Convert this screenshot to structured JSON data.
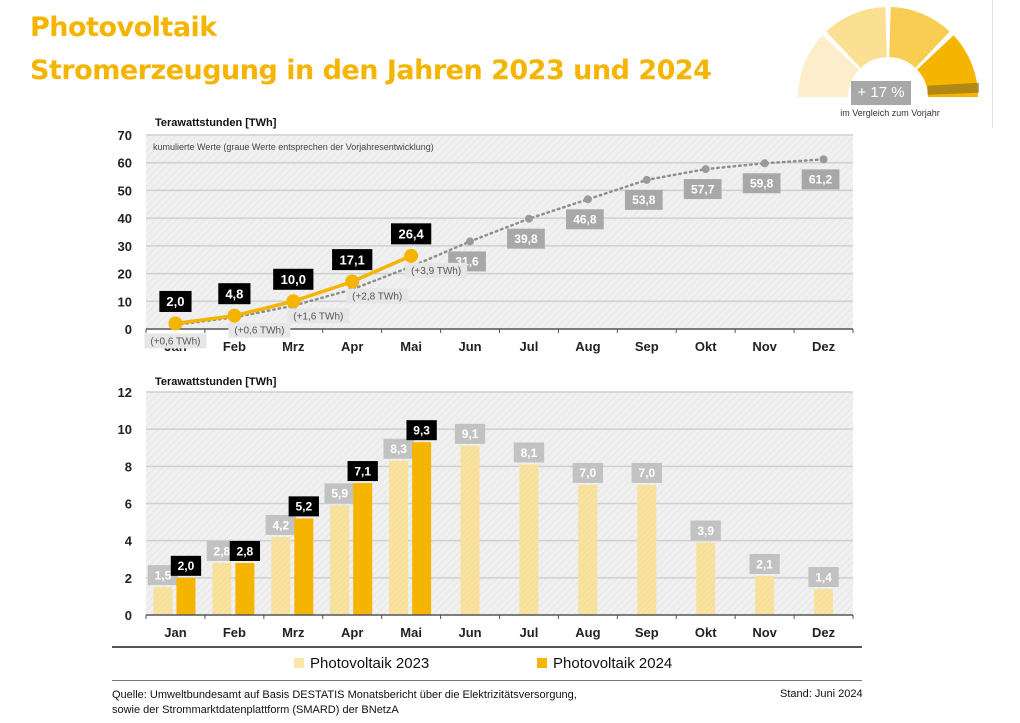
{
  "header": {
    "title_line1": "Photovoltaik",
    "title_line2": "Stromerzeugung in den Jahren 2023 und 2024"
  },
  "gauge": {
    "value_label": "+ 17 %",
    "caption": "im Vergleich zum Vorjahr",
    "change_percent": 17,
    "segment_colors": [
      "#fdeecb",
      "#fbdf93",
      "#f9cd52",
      "#f5b400"
    ],
    "needle_color": "#9a7a1a"
  },
  "colors": {
    "pv2023": "#f8e2a0",
    "pv2024": "#f5b400",
    "prev_year_gray": "#a8a8a8",
    "label_black": "#000000",
    "plot_bg": "#f0f0f0",
    "title": "#f5b400"
  },
  "chart_data": [
    {
      "type": "line",
      "title": "",
      "ylabel": "Terawattstunden [TWh]",
      "subtitle": "kumulierte Werte (graue Werte entsprechen der Vorjahresentwicklung)",
      "categories": [
        "Jan",
        "Feb",
        "Mrz",
        "Apr",
        "Mai",
        "Jun",
        "Jul",
        "Aug",
        "Sep",
        "Okt",
        "Nov",
        "Dez"
      ],
      "yticks": [
        0,
        10,
        20,
        30,
        40,
        50,
        60,
        70
      ],
      "ylim": [
        0,
        70
      ],
      "grid": true,
      "series": [
        {
          "name": "Photovoltaik 2024 (kumuliert)",
          "values": [
            2.0,
            4.8,
            10.0,
            17.1,
            26.4,
            null,
            null,
            null,
            null,
            null,
            null,
            null
          ],
          "labels": [
            "2,0",
            "4,8",
            "10,0",
            "17,1",
            "26,4"
          ],
          "differences": [
            "(+0,6 TWh)",
            "(+0,6 TWh)",
            "(+1,6 TWh)",
            "(+2,8 TWh)",
            "(+3,9 TWh)"
          ]
        },
        {
          "name": "Photovoltaik 2023 (kumuliert)",
          "values": [
            1.5,
            4.2,
            8.4,
            14.3,
            22.5,
            31.6,
            39.8,
            46.8,
            53.8,
            57.7,
            59.8,
            61.2
          ],
          "labels": [
            null,
            null,
            null,
            null,
            null,
            "31,6",
            "39,8",
            "46,8",
            "53,8",
            "57,7",
            "59,8",
            "61,2"
          ]
        }
      ]
    },
    {
      "type": "bar",
      "title": "",
      "ylabel": "Terawattstunden [TWh]",
      "categories": [
        "Jan",
        "Feb",
        "Mrz",
        "Apr",
        "Mai",
        "Jun",
        "Jul",
        "Aug",
        "Sep",
        "Okt",
        "Nov",
        "Dez"
      ],
      "yticks": [
        0,
        2,
        4,
        6,
        8,
        10,
        12
      ],
      "ylim": [
        0,
        12
      ],
      "grid": true,
      "legend_position": "bottom",
      "series": [
        {
          "name": "Photovoltaik 2023",
          "values": [
            1.5,
            2.8,
            4.2,
            5.9,
            8.3,
            9.1,
            8.1,
            7.0,
            7.0,
            3.9,
            2.1,
            1.4
          ],
          "labels": [
            "1,5",
            "2,8",
            "4,2",
            "5,9",
            "8,3",
            "9,1",
            "8,1",
            "7,0",
            "7,0",
            "3,9",
            "2,1",
            "1,4"
          ]
        },
        {
          "name": "Photovoltaik 2024",
          "values": [
            2.0,
            2.8,
            5.2,
            7.1,
            9.3,
            null,
            null,
            null,
            null,
            null,
            null,
            null
          ],
          "labels": [
            "2,0",
            "2,8",
            "5,2",
            "7,1",
            "9,3"
          ]
        }
      ]
    }
  ],
  "legend": {
    "item1": "Photovoltaik 2023",
    "item2": "Photovoltaik 2024"
  },
  "footer": {
    "source_line1": "Quelle: Umweltbundesamt auf Basis DESTATIS Monatsbericht über die Elektrizitätsversorgung,",
    "source_line2": "sowie der Strommarktdatenplattform (SMARD) der BNetzA",
    "stand": "Stand: Juni 2024"
  }
}
